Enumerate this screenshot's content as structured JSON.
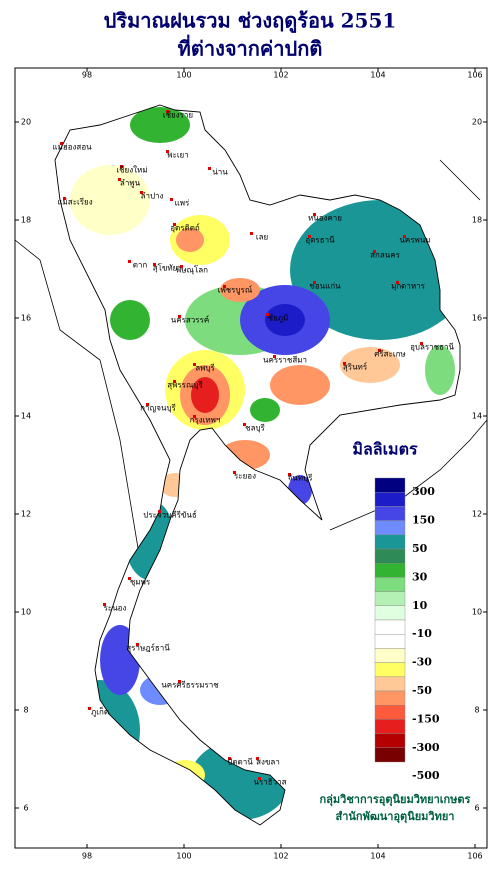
{
  "title": [
    "ปริมาณฝนรวม ช่วงฤดูร้อน 2551",
    "ที่ต่างจากค่าปกติ"
  ],
  "map": {
    "x_ticks": [
      98,
      100,
      102,
      104,
      106
    ],
    "y_ticks": [
      6,
      8,
      10,
      12,
      14,
      16,
      18,
      20
    ],
    "places": [
      "เชียงราย",
      "แม่ฮ่องสอน",
      "เชียงใหม่",
      "ลำพูน",
      "ลำปาง",
      "พะเยา",
      "น่าน",
      "แพร่",
      "แม่สะเรียง",
      "อุตรดิตถ์",
      "ตาก",
      "สุโขทัย",
      "พิษณุโลก",
      "เพชรบูรณ์",
      "เลย",
      "หนองคาย",
      "อุดรธานี",
      "นครพนม",
      "สกลนคร",
      "มุกดาหาร",
      "ขอนแก่น",
      "ชัยภูมิ",
      "นครสวรรค์",
      "อุบลราชธานี",
      "นครราชสีมา",
      "สุรินทร์",
      "ศรีสะเกษ",
      "ลพบุรี",
      "สุพรรณบุรี",
      "กาญจนบุรี",
      "กรุงเทพฯ",
      "ชลบุรี",
      "ระยอง",
      "จันทบุรี",
      "ประจวบคีรีขันธ์",
      "ชุมพร",
      "ระนอง",
      "สุราษฎร์ธานี",
      "ภูเก็ต",
      "นครศรีธรรมราช",
      "สงขลา",
      "ปัตตานี",
      "นราธิวาส"
    ]
  },
  "legend": {
    "title": "มิลลิเมตร",
    "colors": [
      "#000080",
      "#1c1cc8",
      "#4646e6",
      "#6e8cff",
      "#1a9696",
      "#2e8b57",
      "#32b432",
      "#7ddc7d",
      "#b4f0b4",
      "#e0ffe0",
      "#ffffff",
      "#ffffff",
      "#ffffc8",
      "#ffff64",
      "#ffc896",
      "#ff9664",
      "#ff5a3c",
      "#e61e1e",
      "#b40000",
      "#780000"
    ],
    "labels": [
      "300",
      "150",
      "50",
      "30",
      "10",
      "-10",
      "-30",
      "-50",
      "-150",
      "-300",
      "-500"
    ]
  },
  "credits": [
    "กลุ่มวิชาการอุตุนิยมวิทยาเกษตร",
    "สำนักพัฒนาอุตุนิยมวิทยา"
  ]
}
